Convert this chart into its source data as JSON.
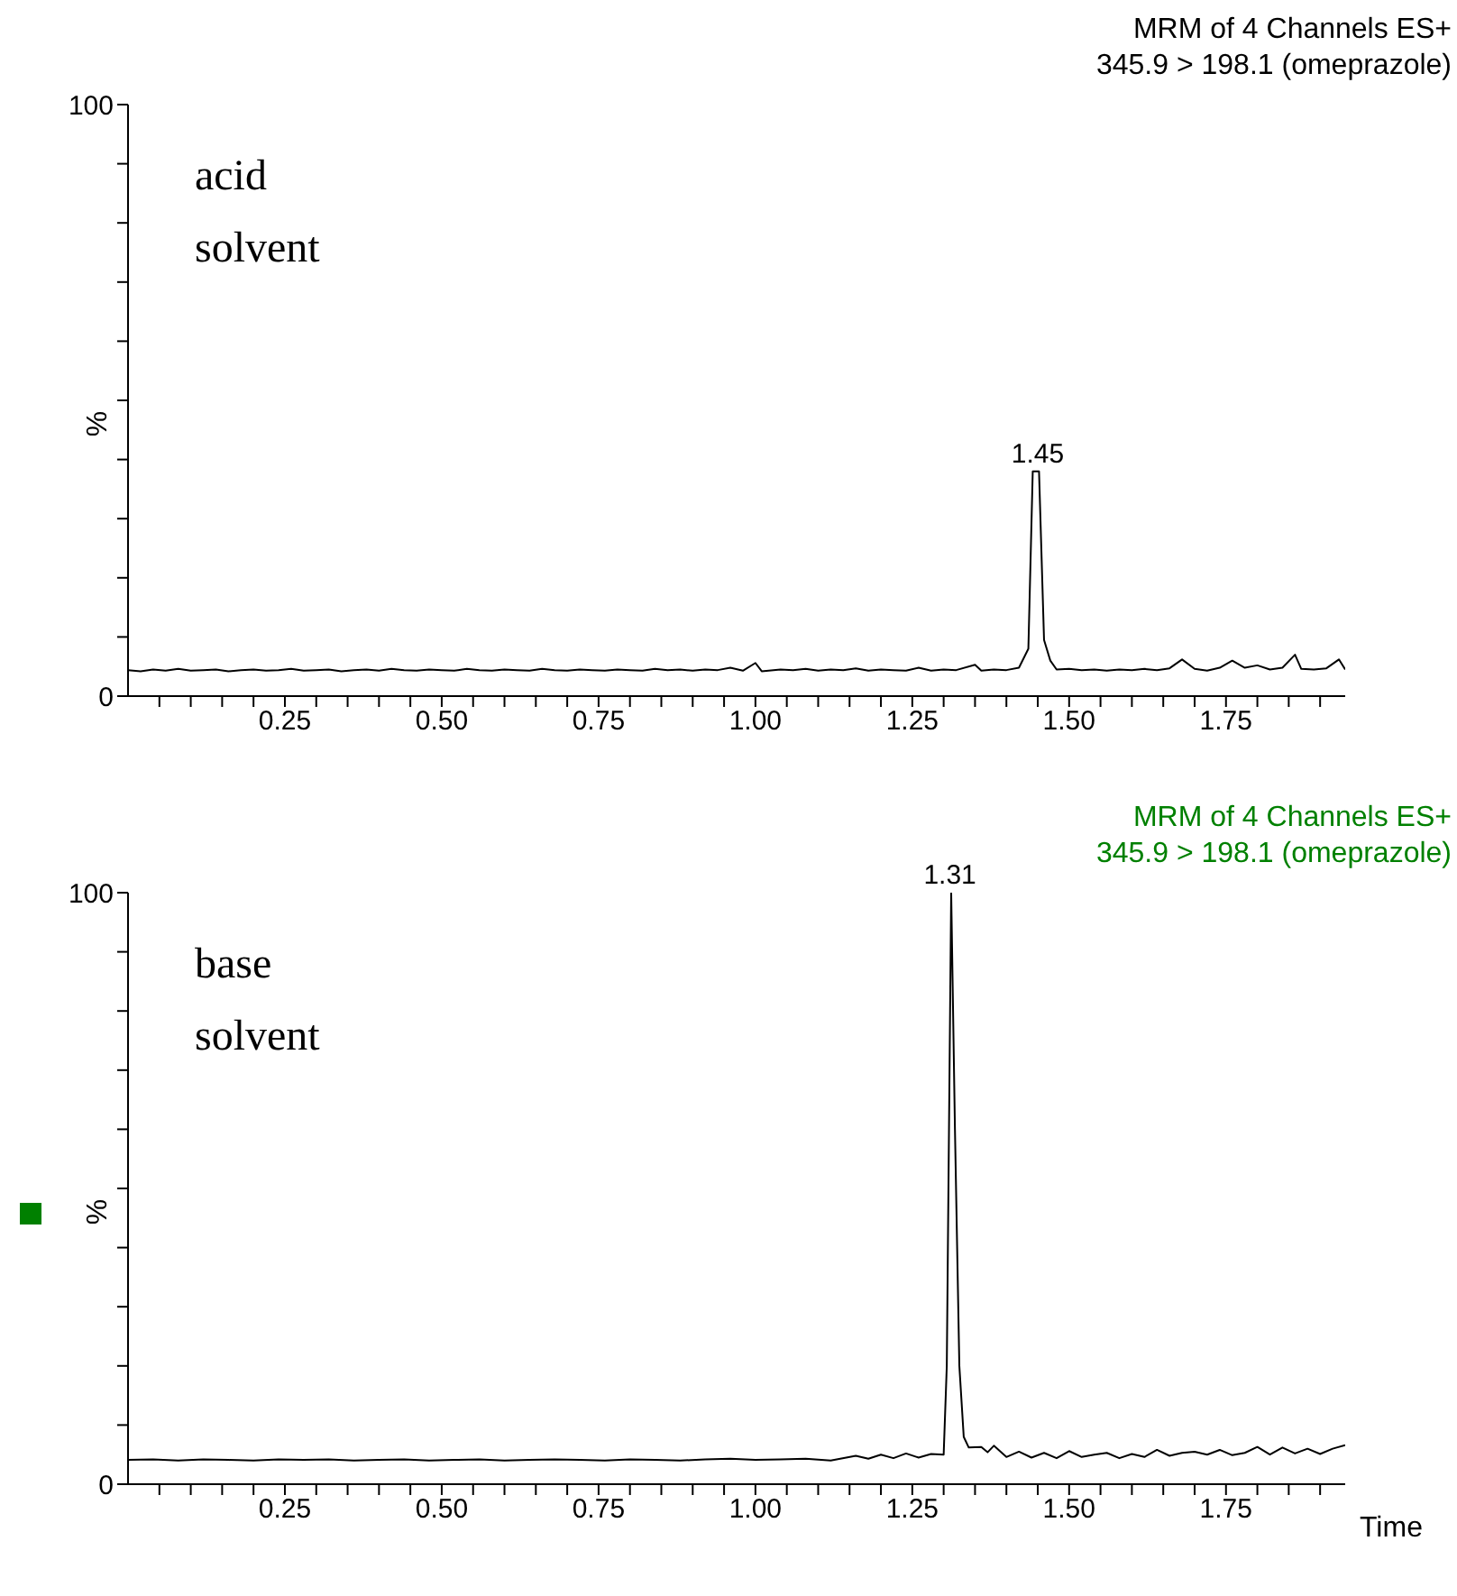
{
  "chart_data": [
    {
      "type": "line",
      "title": "MRM of 4 Channels ES+",
      "subtitle": "345.9 > 198.1 (omeprazole)",
      "ylabel": "%",
      "annotations": [
        "acid solvent",
        {
          "text": "1.45",
          "x": 1.45,
          "y": 38
        }
      ],
      "xlim": [
        0,
        1.94
      ],
      "ylim": [
        0,
        100
      ],
      "xticks": [
        {
          "value": 0.05,
          "label": null
        },
        {
          "value": 0.1,
          "label": null
        },
        {
          "value": 0.15,
          "label": null
        },
        {
          "value": 0.2,
          "label": null
        },
        {
          "value": 0.25,
          "label": "0.25"
        },
        {
          "value": 0.3,
          "label": null
        },
        {
          "value": 0.35,
          "label": null
        },
        {
          "value": 0.4,
          "label": null
        },
        {
          "value": 0.45,
          "label": null
        },
        {
          "value": 0.5,
          "label": "0.50"
        },
        {
          "value": 0.55,
          "label": null
        },
        {
          "value": 0.6,
          "label": null
        },
        {
          "value": 0.65,
          "label": null
        },
        {
          "value": 0.7,
          "label": null
        },
        {
          "value": 0.75,
          "label": "0.75"
        },
        {
          "value": 0.8,
          "label": null
        },
        {
          "value": 0.85,
          "label": null
        },
        {
          "value": 0.9,
          "label": null
        },
        {
          "value": 0.95,
          "label": null
        },
        {
          "value": 1,
          "label": "1.00"
        },
        {
          "value": 1.05,
          "label": null
        },
        {
          "value": 1.1,
          "label": null
        },
        {
          "value": 1.15,
          "label": null
        },
        {
          "value": 1.2,
          "label": null
        },
        {
          "value": 1.25,
          "label": "1.25"
        },
        {
          "value": 1.3,
          "label": null
        },
        {
          "value": 1.35,
          "label": null
        },
        {
          "value": 1.4,
          "label": null
        },
        {
          "value": 1.45,
          "label": null
        },
        {
          "value": 1.5,
          "label": "1.50"
        },
        {
          "value": 1.55,
          "label": null
        },
        {
          "value": 1.6,
          "label": null
        },
        {
          "value": 1.65,
          "label": null
        },
        {
          "value": 1.7,
          "label": null
        },
        {
          "value": 1.75,
          "label": "1.75"
        },
        {
          "value": 1.8,
          "label": null
        },
        {
          "value": 1.85,
          "label": null
        },
        {
          "value": 1.9,
          "label": null
        }
      ],
      "yticks": [
        {
          "value": 0,
          "label": "0"
        },
        {
          "value": 10,
          "label": null
        },
        {
          "value": 20,
          "label": null
        },
        {
          "value": 30,
          "label": null
        },
        {
          "value": 40,
          "label": null
        },
        {
          "value": 50,
          "label": null
        },
        {
          "value": 60,
          "label": null
        },
        {
          "value": 70,
          "label": null
        },
        {
          "value": 80,
          "label": null
        },
        {
          "value": 90,
          "label": null
        },
        {
          "value": 100,
          "label": "100"
        }
      ],
      "x": [
        0,
        0.02,
        0.04,
        0.06,
        0.08,
        0.1,
        0.12,
        0.14,
        0.16,
        0.18,
        0.2,
        0.22,
        0.24,
        0.26,
        0.28,
        0.3,
        0.32,
        0.34,
        0.36,
        0.38,
        0.4,
        0.42,
        0.44,
        0.46,
        0.48,
        0.5,
        0.52,
        0.54,
        0.56,
        0.58,
        0.6,
        0.62,
        0.64,
        0.66,
        0.68,
        0.7,
        0.72,
        0.74,
        0.76,
        0.78,
        0.8,
        0.82,
        0.84,
        0.86,
        0.88,
        0.9,
        0.92,
        0.94,
        0.96,
        0.98,
        1,
        1.01,
        1.04,
        1.06,
        1.08,
        1.1,
        1.12,
        1.14,
        1.16,
        1.18,
        1.2,
        1.22,
        1.24,
        1.26,
        1.28,
        1.3,
        1.32,
        1.35,
        1.36,
        1.38,
        1.4,
        1.42,
        1.435,
        1.442,
        1.452,
        1.46,
        1.47,
        1.48,
        1.5,
        1.52,
        1.54,
        1.56,
        1.58,
        1.6,
        1.62,
        1.64,
        1.66,
        1.68,
        1.7,
        1.72,
        1.74,
        1.76,
        1.78,
        1.8,
        1.82,
        1.84,
        1.86,
        1.87,
        1.89,
        1.91,
        1.93,
        1.94
      ],
      "series": [
        {
          "color": "#000000",
          "values": [
            4.4,
            4.2,
            4.5,
            4.3,
            4.6,
            4.3,
            4.4,
            4.5,
            4.2,
            4.4,
            4.5,
            4.3,
            4.4,
            4.6,
            4.3,
            4.4,
            4.5,
            4.2,
            4.4,
            4.5,
            4.3,
            4.6,
            4.4,
            4.3,
            4.5,
            4.4,
            4.3,
            4.6,
            4.4,
            4.3,
            4.5,
            4.4,
            4.3,
            4.6,
            4.4,
            4.3,
            4.5,
            4.4,
            4.3,
            4.5,
            4.4,
            4.3,
            4.6,
            4.4,
            4.5,
            4.3,
            4.5,
            4.4,
            4.8,
            4.3,
            5.6,
            4.2,
            4.5,
            4.4,
            4.6,
            4.3,
            4.5,
            4.4,
            4.7,
            4.3,
            4.5,
            4.4,
            4.3,
            4.8,
            4.3,
            4.5,
            4.4,
            5.3,
            4.3,
            4.5,
            4.4,
            4.8,
            8,
            38,
            38,
            9.5,
            6,
            4.5,
            4.6,
            4.4,
            4.5,
            4.3,
            4.5,
            4.4,
            4.6,
            4.4,
            4.7,
            6.2,
            4.6,
            4.3,
            4.8,
            6,
            4.8,
            5.2,
            4.5,
            4.8,
            7,
            4.6,
            4.5,
            4.7,
            6.2,
            4.5
          ]
        }
      ]
    },
    {
      "type": "line",
      "title": "MRM of 4 Channels ES+",
      "subtitle": "345.9 > 198.1 (omeprazole)",
      "ylabel": "%",
      "xlabel": "Time",
      "annotations": [
        "base solvent",
        {
          "text": "1.31",
          "x": 1.31,
          "y": 100
        }
      ],
      "xlim": [
        0,
        1.94
      ],
      "ylim": [
        0,
        100
      ],
      "xticks": [
        {
          "value": 0.05,
          "label": null
        },
        {
          "value": 0.1,
          "label": null
        },
        {
          "value": 0.15,
          "label": null
        },
        {
          "value": 0.2,
          "label": null
        },
        {
          "value": 0.25,
          "label": "0.25"
        },
        {
          "value": 0.3,
          "label": null
        },
        {
          "value": 0.35,
          "label": null
        },
        {
          "value": 0.4,
          "label": null
        },
        {
          "value": 0.45,
          "label": null
        },
        {
          "value": 0.5,
          "label": "0.50"
        },
        {
          "value": 0.55,
          "label": null
        },
        {
          "value": 0.6,
          "label": null
        },
        {
          "value": 0.65,
          "label": null
        },
        {
          "value": 0.7,
          "label": null
        },
        {
          "value": 0.75,
          "label": "0.75"
        },
        {
          "value": 0.8,
          "label": null
        },
        {
          "value": 0.85,
          "label": null
        },
        {
          "value": 0.9,
          "label": null
        },
        {
          "value": 0.95,
          "label": null
        },
        {
          "value": 1,
          "label": "1.00"
        },
        {
          "value": 1.05,
          "label": null
        },
        {
          "value": 1.1,
          "label": null
        },
        {
          "value": 1.15,
          "label": null
        },
        {
          "value": 1.2,
          "label": null
        },
        {
          "value": 1.25,
          "label": "1.25"
        },
        {
          "value": 1.3,
          "label": null
        },
        {
          "value": 1.35,
          "label": null
        },
        {
          "value": 1.4,
          "label": null
        },
        {
          "value": 1.45,
          "label": null
        },
        {
          "value": 1.5,
          "label": "1.50"
        },
        {
          "value": 1.55,
          "label": null
        },
        {
          "value": 1.6,
          "label": null
        },
        {
          "value": 1.65,
          "label": null
        },
        {
          "value": 1.7,
          "label": null
        },
        {
          "value": 1.75,
          "label": "1.75"
        },
        {
          "value": 1.8,
          "label": null
        },
        {
          "value": 1.85,
          "label": null
        },
        {
          "value": 1.9,
          "label": null
        }
      ],
      "yticks": [
        {
          "value": 0,
          "label": "0"
        },
        {
          "value": 10,
          "label": null
        },
        {
          "value": 20,
          "label": null
        },
        {
          "value": 30,
          "label": null
        },
        {
          "value": 40,
          "label": null
        },
        {
          "value": 50,
          "label": null
        },
        {
          "value": 60,
          "label": null
        },
        {
          "value": 70,
          "label": null
        },
        {
          "value": 80,
          "label": null
        },
        {
          "value": 90,
          "label": null
        },
        {
          "value": 100,
          "label": "100"
        }
      ],
      "x": [
        0,
        0.04,
        0.08,
        0.12,
        0.16,
        0.2,
        0.24,
        0.28,
        0.32,
        0.36,
        0.4,
        0.44,
        0.48,
        0.52,
        0.56,
        0.6,
        0.64,
        0.68,
        0.72,
        0.76,
        0.8,
        0.84,
        0.88,
        0.92,
        0.96,
        1,
        1.04,
        1.08,
        1.12,
        1.16,
        1.18,
        1.2,
        1.22,
        1.24,
        1.26,
        1.28,
        1.3,
        1.305,
        1.312,
        1.318,
        1.325,
        1.332,
        1.34,
        1.36,
        1.37,
        1.38,
        1.4,
        1.42,
        1.44,
        1.46,
        1.48,
        1.5,
        1.52,
        1.54,
        1.56,
        1.58,
        1.6,
        1.62,
        1.64,
        1.66,
        1.68,
        1.7,
        1.72,
        1.74,
        1.76,
        1.78,
        1.8,
        1.82,
        1.84,
        1.86,
        1.88,
        1.9,
        1.92,
        1.94
      ],
      "series": [
        {
          "color": "#000000",
          "values": [
            4.1,
            4.2,
            4,
            4.2,
            4.1,
            4,
            4.2,
            4.1,
            4.2,
            4,
            4.1,
            4.2,
            4,
            4.1,
            4.2,
            4,
            4.1,
            4.2,
            4.1,
            4,
            4.2,
            4.1,
            4,
            4.2,
            4.3,
            4.1,
            4.2,
            4.3,
            4,
            4.8,
            4.3,
            5,
            4.4,
            5.2,
            4.5,
            5.1,
            5,
            20,
            100,
            60,
            20,
            8,
            6.2,
            6.3,
            5.4,
            6.5,
            4.6,
            5.5,
            4.5,
            5.3,
            4.4,
            5.6,
            4.6,
            5,
            5.3,
            4.4,
            5.1,
            4.6,
            5.8,
            4.8,
            5.3,
            5.5,
            5,
            5.8,
            4.9,
            5.3,
            6.3,
            5,
            6.2,
            5.2,
            6,
            5.1,
            6,
            6.6
          ]
        }
      ]
    }
  ]
}
